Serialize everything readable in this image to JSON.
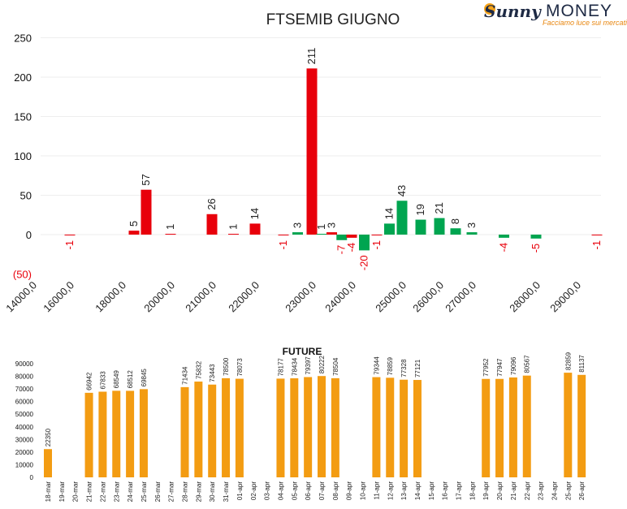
{
  "logo": {
    "brand_part1": "Sunny",
    "brand_part2": "MONEY",
    "tagline": "Facciamo luce sui mercati"
  },
  "colors": {
    "positive": "#e8000b",
    "negative": "#00a550",
    "future": "#f39c12",
    "negative_label": "#e8000b"
  },
  "chart_data": [
    {
      "type": "bar",
      "title": "FTSEMIB GIUGNO",
      "ylim": [
        -50,
        250
      ],
      "yticks": [
        "250",
        "200",
        "150",
        "100",
        "50",
        "0",
        "(50)"
      ],
      "ytick_values": [
        250,
        200,
        150,
        100,
        50,
        0,
        -50
      ],
      "xticks": [
        "14000,0",
        "16000,0",
        "18000,0",
        "20000,0",
        "21000,0",
        "22000,0",
        "23000,0",
        "24000,0",
        "25000,0",
        "26000,0",
        "27000,0",
        "28000,0",
        "29000,0"
      ],
      "bars": [
        {
          "strike": "16000",
          "value": -1,
          "color": "red",
          "label": "-1"
        },
        {
          "strike": "18500",
          "value": 5,
          "color": "red",
          "label": "5"
        },
        {
          "strike": "19000",
          "value": 57,
          "color": "red",
          "label": "57"
        },
        {
          "strike": "20000",
          "value": 1,
          "color": "red",
          "label": "1"
        },
        {
          "strike": "21000",
          "value": 26,
          "color": "red",
          "label": "26"
        },
        {
          "strike": "21500",
          "value": 1,
          "color": "red",
          "label": "1"
        },
        {
          "strike": "22000",
          "value": 14,
          "color": "red",
          "label": "14"
        },
        {
          "strike": "22500",
          "value": -1,
          "color": "red",
          "label": "-1"
        },
        {
          "strike": "22750",
          "value": 3,
          "color": "green",
          "label": "3"
        },
        {
          "strike": "23000",
          "value": 211,
          "color": "red",
          "label": "211"
        },
        {
          "strike": "23250",
          "value": 1,
          "color": "green",
          "label": "1"
        },
        {
          "strike": "23500",
          "value": 3,
          "color": "red",
          "label": "3"
        },
        {
          "strike": "23750",
          "value": -7,
          "color": "green",
          "label": "-7"
        },
        {
          "strike": "24000",
          "value": -4,
          "color": "red",
          "label": "-4"
        },
        {
          "strike": "24250",
          "value": -20,
          "color": "green",
          "label": "-20"
        },
        {
          "strike": "24500",
          "value": -1,
          "color": "red",
          "label": "-1"
        },
        {
          "strike": "24750",
          "value": 14,
          "color": "green",
          "label": "14"
        },
        {
          "strike": "25000",
          "value": 43,
          "color": "green",
          "label": "43"
        },
        {
          "strike": "25500",
          "value": 19,
          "color": "green",
          "label": "19"
        },
        {
          "strike": "26000",
          "value": 21,
          "color": "green",
          "label": "21"
        },
        {
          "strike": "26500",
          "value": 8,
          "color": "green",
          "label": "8"
        },
        {
          "strike": "27000",
          "value": 3,
          "color": "green",
          "label": "3"
        },
        {
          "strike": "27500",
          "value": -4,
          "color": "green",
          "label": "-4"
        },
        {
          "strike": "28000",
          "value": -5,
          "color": "green",
          "label": "-5"
        },
        {
          "strike": "29500",
          "value": -1,
          "color": "red",
          "label": "-1"
        }
      ]
    },
    {
      "type": "bar",
      "title": "FUTURE",
      "ylim": [
        0,
        90000
      ],
      "yticks": [
        "90000",
        "80000",
        "70000",
        "60000",
        "50000",
        "40000",
        "30000",
        "20000",
        "10000",
        "0"
      ],
      "ytick_values": [
        90000,
        80000,
        70000,
        60000,
        50000,
        40000,
        30000,
        20000,
        10000,
        0
      ],
      "categories": [
        "18-mar",
        "19-mar",
        "20-mar",
        "21-mar",
        "22-mar",
        "23-mar",
        "24-mar",
        "25-mar",
        "26-mar",
        "27-mar",
        "28-mar",
        "29-mar",
        "30-mar",
        "31-mar",
        "01-apr",
        "02-apr",
        "03-apr",
        "04-apr",
        "05-apr",
        "06-apr",
        "07-apr",
        "08-apr",
        "09-apr",
        "10-apr",
        "11-apr",
        "12-apr",
        "13-apr",
        "14-apr",
        "15-apr",
        "16-apr",
        "17-apr",
        "18-apr",
        "19-apr",
        "20-apr",
        "21-apr",
        "22-apr",
        "23-apr",
        "24-apr",
        "25-apr",
        "26-apr"
      ],
      "values": [
        22350,
        null,
        null,
        66942,
        67833,
        68549,
        68512,
        69845,
        null,
        null,
        71434,
        75832,
        73443,
        78500,
        78073,
        null,
        null,
        78177,
        78434,
        79397,
        80222,
        78504,
        null,
        null,
        79344,
        78859,
        77328,
        77121,
        null,
        null,
        null,
        null,
        77952,
        77947,
        79096,
        80567,
        null,
        null,
        82859,
        81137
      ],
      "labels": [
        "22350",
        "",
        "",
        "66942",
        "67833",
        "68549",
        "68512",
        "69845",
        "",
        "",
        "71434",
        "75832",
        "73443",
        "78500",
        "78073",
        "",
        "",
        "78177",
        "78434",
        "79397",
        "80222",
        "78504",
        "",
        "",
        "79344",
        "78859",
        "77328",
        "77121",
        "",
        "",
        "",
        "",
        "77952",
        "77947",
        "79096",
        "80567",
        "",
        "",
        "82859",
        "81137"
      ]
    }
  ]
}
